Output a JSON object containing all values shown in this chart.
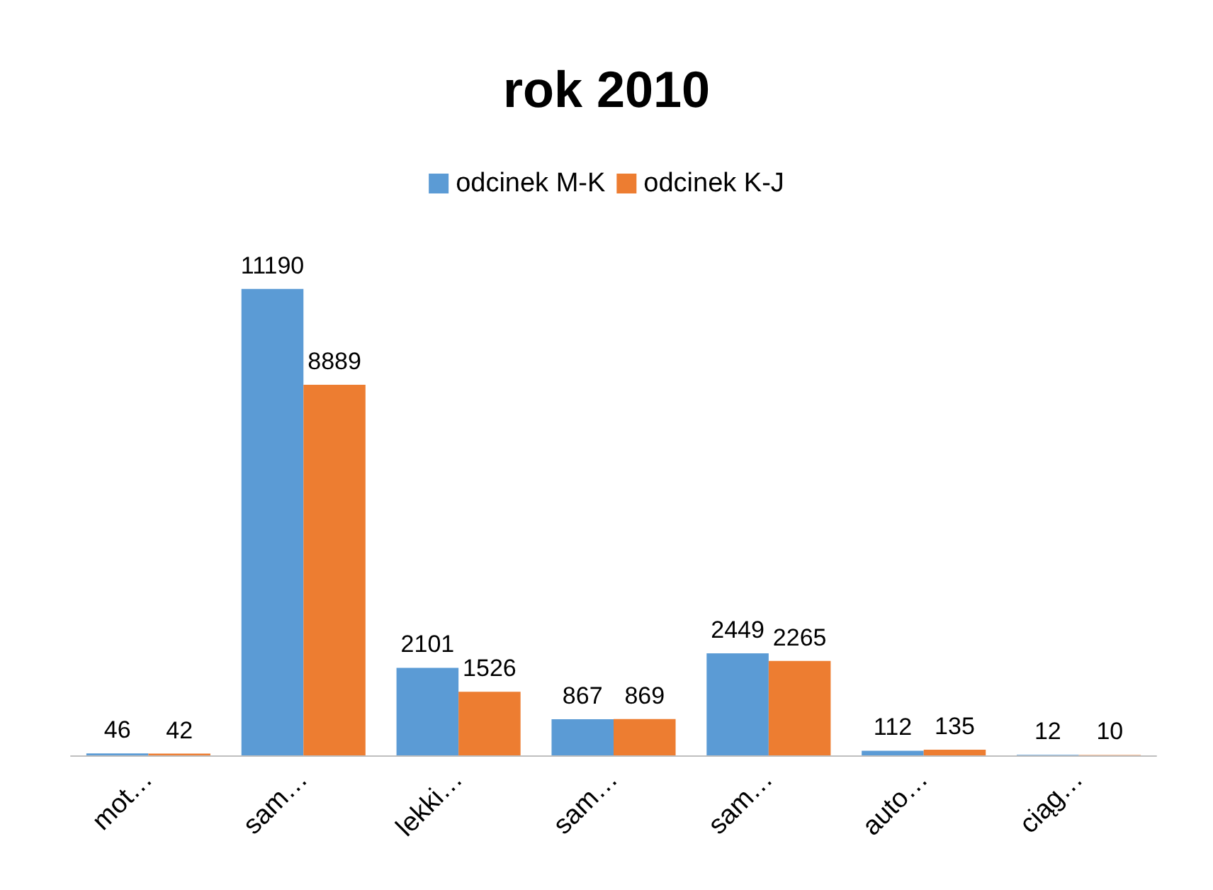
{
  "chart_data": {
    "type": "bar",
    "title": "rok 2010",
    "categories": [
      "mot…",
      "sam…",
      "lekki…",
      "sam…",
      "sam…",
      "auto…",
      "ciąg…"
    ],
    "series": [
      {
        "name": "odcinek M-K",
        "color": "#5b9bd5",
        "values": [
          46,
          11190,
          2101,
          867,
          2449,
          112,
          12
        ]
      },
      {
        "name": "odcinek K-J",
        "color": "#ed7d31",
        "values": [
          42,
          8889,
          1526,
          869,
          2265,
          135,
          10
        ]
      }
    ],
    "data_labels": true,
    "legend": "top"
  }
}
